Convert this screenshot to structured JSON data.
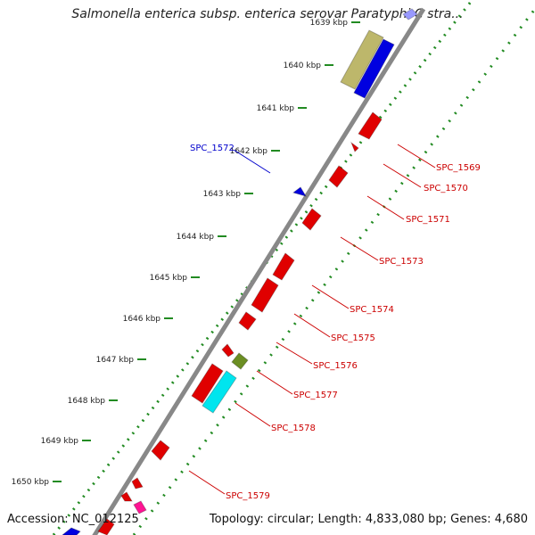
{
  "title": "Salmonella enterica subsp. enterica serovar Paratyphi C stra...",
  "footer": {
    "accession": "Accession: NC_012125",
    "summary": "Topology: circular; Length: 4,833,080 bp; Genes: 4,680"
  },
  "ruler_labels": [
    "1639 kbp",
    "1640 kbp",
    "1641 kbp",
    "1642 kbp",
    "1643 kbp",
    "1644 kbp",
    "1645 kbp",
    "1646 kbp",
    "1647 kbp",
    "1648 kbp",
    "1649 kbp",
    "1650 kbp"
  ],
  "feature_labels": [
    {
      "text": "SPC_1572",
      "color": "#0000cc"
    },
    {
      "text": "SPC_1569",
      "color": "#cc0000"
    },
    {
      "text": "SPC_1570",
      "color": "#cc0000"
    },
    {
      "text": "SPC_1571",
      "color": "#cc0000"
    },
    {
      "text": "SPC_1573",
      "color": "#cc0000"
    },
    {
      "text": "SPC_1574",
      "color": "#cc0000"
    },
    {
      "text": "SPC_1575",
      "color": "#cc0000"
    },
    {
      "text": "SPC_1576",
      "color": "#cc0000"
    },
    {
      "text": "SPC_1577",
      "color": "#cc0000"
    },
    {
      "text": "SPC_1578",
      "color": "#cc0000"
    },
    {
      "text": "SPC_1579",
      "color": "#cc0000"
    }
  ],
  "colors": {
    "backbone": "#888888",
    "gc_dots": "#228b22",
    "cds_forward": "#e00000",
    "cds_reverse": "#0000e0",
    "rrna": "#bdb76b",
    "trna": "#6b8e23",
    "other": "#00e5ee",
    "misc": "#ff1493"
  }
}
